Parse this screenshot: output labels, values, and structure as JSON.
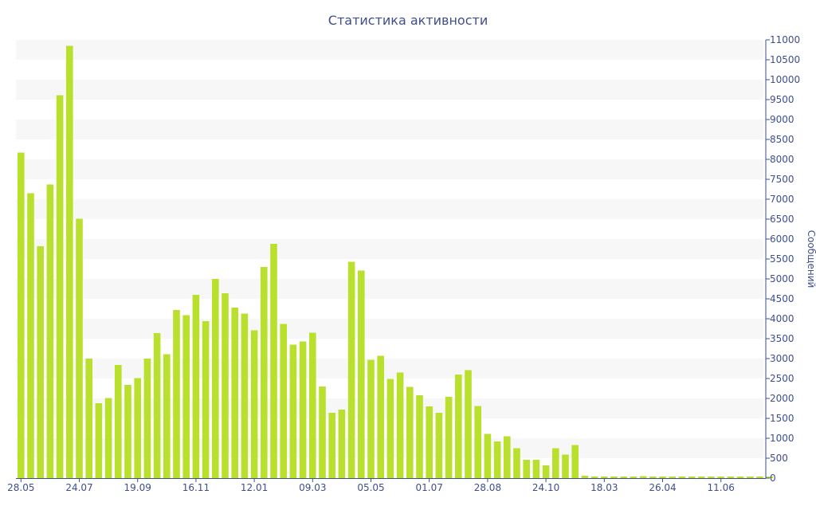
{
  "chart_data": {
    "type": "bar",
    "title": "Статистика активности",
    "xlabel": "",
    "ylabel": "Сообщений",
    "y_axis_side": "right",
    "grid": "alternating horizontal bands",
    "legend": "none",
    "ylim": [
      0,
      11000
    ],
    "yticks": [
      0,
      500,
      1000,
      1500,
      2000,
      2500,
      3000,
      3500,
      4000,
      4500,
      5000,
      5500,
      6000,
      6500,
      7000,
      7500,
      8000,
      8500,
      9000,
      9500,
      10000,
      10500,
      11000
    ],
    "x_tick_labels": [
      {
        "index": 0,
        "label": "28.05"
      },
      {
        "index": 6,
        "label": "24.07"
      },
      {
        "index": 12,
        "label": "19.09"
      },
      {
        "index": 18,
        "label": "16.11"
      },
      {
        "index": 24,
        "label": "12.01"
      },
      {
        "index": 30,
        "label": "09.03"
      },
      {
        "index": 36,
        "label": "05.05"
      },
      {
        "index": 42,
        "label": "01.07"
      },
      {
        "index": 48,
        "label": "28.08"
      },
      {
        "index": 54,
        "label": "24.10"
      },
      {
        "index": 60,
        "label": "18.03"
      },
      {
        "index": 66,
        "label": "26.04"
      },
      {
        "index": 72,
        "label": "11.06"
      }
    ],
    "values": [
      8170,
      7150,
      5820,
      7370,
      9610,
      10850,
      6510,
      3000,
      1880,
      2010,
      2840,
      2340,
      2510,
      3000,
      3640,
      3110,
      4220,
      4090,
      4600,
      3940,
      5000,
      4640,
      4280,
      4130,
      3710,
      5300,
      5880,
      3870,
      3350,
      3430,
      3650,
      2300,
      1640,
      1720,
      5430,
      5210,
      2970,
      3070,
      2490,
      2650,
      2290,
      2080,
      1800,
      1640,
      2040,
      2600,
      2710,
      1810,
      1110,
      920,
      1050,
      750,
      460,
      460,
      320,
      750,
      590,
      830,
      60,
      40,
      40,
      40,
      40,
      40,
      50,
      40,
      40,
      40,
      40,
      40,
      40,
      40,
      40,
      40,
      40,
      40,
      40,
      40
    ],
    "colors": {
      "bar": "#b8e02c",
      "band": "#f7f7f7",
      "text": "#3e4e8e",
      "axis": "#3e4e8e"
    }
  }
}
